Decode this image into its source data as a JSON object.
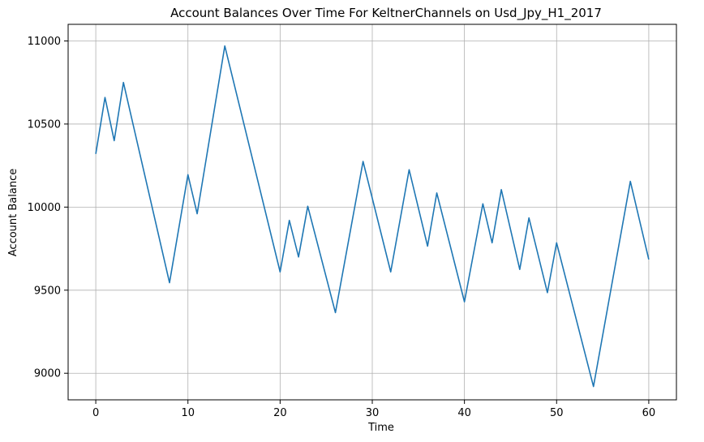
{
  "chart_data": {
    "type": "line",
    "title": "Account Balances Over Time For KeltnerChannels on Usd_Jpy_H1_2017",
    "xlabel": "Time",
    "ylabel": "Account Balance",
    "xlim": [
      -3,
      63
    ],
    "ylim": [
      8840,
      11100
    ],
    "xticks": [
      0,
      10,
      20,
      30,
      40,
      50,
      60
    ],
    "yticks": [
      9000,
      9500,
      10000,
      10500,
      11000
    ],
    "grid": true,
    "line_color": "#1f77b4",
    "series": [
      {
        "x": [
          0,
          1,
          2,
          3,
          8,
          10,
          11,
          14,
          20,
          21,
          22,
          23,
          26,
          29,
          32,
          34,
          36,
          37,
          40,
          42,
          43,
          44,
          46,
          47,
          49,
          50,
          54,
          58,
          60
        ],
        "values": [
          10320,
          10660,
          10400,
          10750,
          9545,
          10195,
          9960,
          10970,
          9610,
          9920,
          9700,
          10005,
          9365,
          10275,
          9610,
          10225,
          9765,
          10085,
          9430,
          10020,
          9785,
          10105,
          9625,
          9935,
          9485,
          9785,
          8920,
          10155,
          9685
        ]
      }
    ]
  }
}
